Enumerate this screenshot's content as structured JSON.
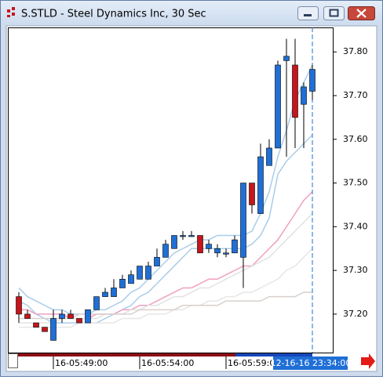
{
  "window": {
    "title": "S.STLD - Steel Dynamics Inc, 30 Sec"
  },
  "chart_data": {
    "type": "candlestick",
    "categories": [
      null,
      null,
      null,
      null,
      "16-05:49:00",
      null,
      null,
      null,
      null,
      null,
      null,
      null,
      null,
      null,
      "16-05:54:00",
      null,
      null,
      null,
      null,
      null,
      null,
      null,
      null,
      null,
      "16-05:59:00",
      null,
      null,
      null,
      null,
      null,
      null,
      null,
      null,
      null,
      null
    ],
    "current_time": "12-16-16 23:34:00",
    "open": [
      37.24,
      37.2,
      37.18,
      37.17,
      37.14,
      37.19,
      37.2,
      37.19,
      37.18,
      37.21,
      37.24,
      37.24,
      37.26,
      37.27,
      37.28,
      37.28,
      37.31,
      37.33,
      37.35,
      37.38,
      37.38,
      37.38,
      37.35,
      37.34,
      37.34,
      37.34,
      37.33,
      37.5,
      37.43,
      37.54,
      37.58,
      37.78,
      37.77,
      37.68,
      37.71
    ],
    "high": [
      37.25,
      37.21,
      37.18,
      37.17,
      37.21,
      37.21,
      37.21,
      37.19,
      37.21,
      37.24,
      37.26,
      37.28,
      37.29,
      37.3,
      37.31,
      37.32,
      37.35,
      37.37,
      37.38,
      37.39,
      37.39,
      37.38,
      37.37,
      37.36,
      37.35,
      37.38,
      37.5,
      37.5,
      37.59,
      37.6,
      37.78,
      37.83,
      37.83,
      37.73,
      37.77
    ],
    "low": [
      37.18,
      37.19,
      37.17,
      37.16,
      37.14,
      37.18,
      37.19,
      37.18,
      37.18,
      37.21,
      37.24,
      37.24,
      37.26,
      37.27,
      37.28,
      37.28,
      37.31,
      37.33,
      37.35,
      37.37,
      37.38,
      37.34,
      37.34,
      37.33,
      37.33,
      37.34,
      37.26,
      37.43,
      37.43,
      37.54,
      37.58,
      37.56,
      37.58,
      37.58,
      37.69
    ],
    "close": [
      37.2,
      37.19,
      37.17,
      37.16,
      37.19,
      37.2,
      37.19,
      37.18,
      37.21,
      37.24,
      37.25,
      37.26,
      37.28,
      37.29,
      37.31,
      37.31,
      37.33,
      37.36,
      37.38,
      37.38,
      37.38,
      37.34,
      37.36,
      37.35,
      37.34,
      37.37,
      37.5,
      37.45,
      37.56,
      37.58,
      37.77,
      37.79,
      37.65,
      37.72,
      37.76
    ],
    "up_color": "#1f6fd6",
    "down_color": "#c4161c",
    "lines": [
      {
        "color": "#a9cdea",
        "values": [
          37.26,
          37.24,
          37.23,
          37.22,
          37.21,
          37.21,
          37.2,
          37.2,
          37.2,
          37.21,
          37.21,
          37.22,
          37.23,
          37.25,
          37.26,
          37.28,
          37.3,
          37.32,
          37.34,
          37.35,
          37.36,
          37.37,
          37.37,
          37.38,
          37.38,
          37.38,
          37.38,
          37.39,
          37.43,
          37.48,
          37.56,
          37.62,
          37.69,
          37.73,
          37.77
        ]
      },
      {
        "color": "#a9cdea",
        "values": [
          37.23,
          37.22,
          37.2,
          37.19,
          37.18,
          37.18,
          37.18,
          37.18,
          37.18,
          37.18,
          37.19,
          37.2,
          37.21,
          37.22,
          37.24,
          37.25,
          37.27,
          37.29,
          37.31,
          37.33,
          37.35,
          37.35,
          37.35,
          37.35,
          37.35,
          37.35,
          37.35,
          37.36,
          37.38,
          37.42,
          37.52,
          37.55,
          37.57,
          37.59,
          37.61
        ]
      },
      {
        "color": "#f0a0c0",
        "values": [
          37.21,
          37.21,
          37.2,
          37.2,
          37.2,
          37.2,
          37.19,
          37.19,
          37.19,
          37.2,
          37.2,
          37.2,
          37.21,
          37.21,
          37.22,
          37.22,
          37.23,
          37.24,
          37.25,
          37.26,
          37.26,
          37.27,
          37.28,
          37.28,
          37.29,
          37.3,
          37.31,
          37.31,
          37.33,
          37.35,
          37.37,
          37.4,
          37.43,
          37.46,
          37.48
        ]
      },
      {
        "color": "#e2e2e2",
        "values": [
          37.18,
          37.18,
          37.18,
          37.18,
          37.18,
          37.19,
          37.19,
          37.19,
          37.19,
          37.19,
          37.2,
          37.2,
          37.2,
          37.21,
          37.21,
          37.22,
          37.22,
          37.23,
          37.24,
          37.24,
          37.25,
          37.26,
          37.26,
          37.27,
          37.28,
          37.29,
          37.3,
          37.31,
          37.32,
          37.33,
          37.35,
          37.37,
          37.39,
          37.41,
          37.43
        ]
      },
      {
        "color": "#e6e6e6",
        "values": [
          37.17,
          37.17,
          37.17,
          37.17,
          37.17,
          37.17,
          37.17,
          37.18,
          37.18,
          37.18,
          37.18,
          37.18,
          37.19,
          37.19,
          37.19,
          37.2,
          37.2,
          37.2,
          37.21,
          37.21,
          37.22,
          37.22,
          37.23,
          37.23,
          37.24,
          37.24,
          37.25,
          37.25,
          37.26,
          37.27,
          37.28,
          37.3,
          37.31,
          37.33,
          37.35
        ]
      },
      {
        "color": "#d8d0cc",
        "values": [
          37.19,
          37.19,
          37.19,
          37.19,
          37.19,
          37.19,
          37.19,
          37.2,
          37.2,
          37.2,
          37.2,
          37.2,
          37.2,
          37.2,
          37.21,
          37.21,
          37.21,
          37.21,
          37.21,
          37.22,
          37.22,
          37.22,
          37.22,
          37.22,
          37.23,
          37.23,
          37.23,
          37.23,
          37.23,
          37.24,
          37.24,
          37.24,
          37.24,
          37.25,
          37.25
        ]
      }
    ],
    "ylim": [
      37.112,
      37.856
    ],
    "yticks": [
      {
        "value": 37.2,
        "label": "37.20"
      },
      {
        "value": 37.3,
        "label": "37.30"
      },
      {
        "value": 37.4,
        "label": "37.40"
      },
      {
        "value": 37.5,
        "label": "37.50"
      },
      {
        "value": 37.6,
        "label": "37.60"
      },
      {
        "value": 37.7,
        "label": "37.70"
      },
      {
        "value": 37.8,
        "label": "37.80"
      }
    ],
    "grid": false
  }
}
